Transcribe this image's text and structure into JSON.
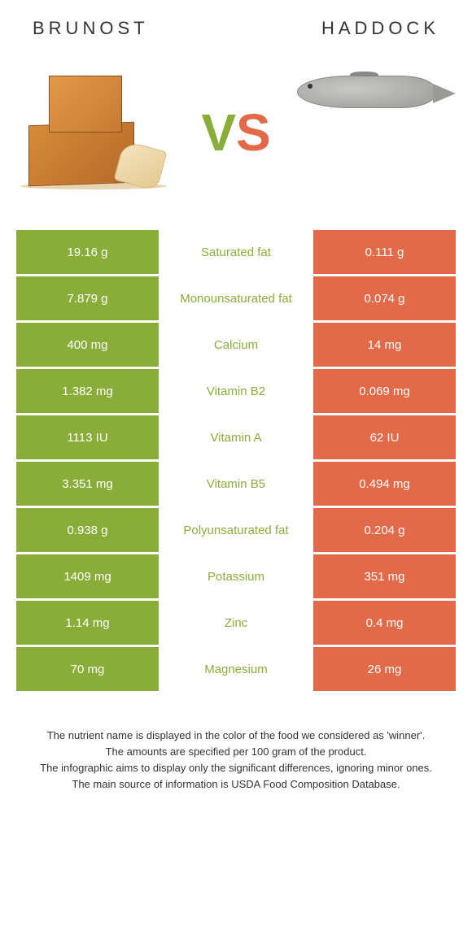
{
  "title_left": "BRUNOST",
  "title_right": "HADDOCK",
  "vs": {
    "v": "V",
    "s": "S"
  },
  "colors": {
    "left": "#8aad3a",
    "right": "#e26a49",
    "mid_winner_left": "#8aad3a",
    "mid_winner_right": "#e26a49"
  },
  "rows": [
    {
      "label": "Saturated fat",
      "left": "19.16 g",
      "right": "0.111 g",
      "winner": "left"
    },
    {
      "label": "Monounsaturated fat",
      "left": "7.879 g",
      "right": "0.074 g",
      "winner": "left"
    },
    {
      "label": "Calcium",
      "left": "400 mg",
      "right": "14 mg",
      "winner": "left"
    },
    {
      "label": "Vitamin B2",
      "left": "1.382 mg",
      "right": "0.069 mg",
      "winner": "left"
    },
    {
      "label": "Vitamin A",
      "left": "1113 IU",
      "right": "62 IU",
      "winner": "left"
    },
    {
      "label": "Vitamin B5",
      "left": "3.351 mg",
      "right": "0.494 mg",
      "winner": "left"
    },
    {
      "label": "Polyunsaturated fat",
      "left": "0.938 g",
      "right": "0.204 g",
      "winner": "left"
    },
    {
      "label": "Potassium",
      "left": "1409 mg",
      "right": "351 mg",
      "winner": "left"
    },
    {
      "label": "Zinc",
      "left": "1.14 mg",
      "right": "0.4 mg",
      "winner": "left"
    },
    {
      "label": "Magnesium",
      "left": "70 mg",
      "right": "26 mg",
      "winner": "left"
    }
  ],
  "footnote": {
    "l1": "The nutrient name is displayed in the color of the food we considered as 'winner'.",
    "l2": "The amounts are specified per 100 gram of the product.",
    "l3": "The infographic aims to display only the significant differences, ignoring minor ones.",
    "l4": "The main source of information is USDA Food Composition Database."
  }
}
